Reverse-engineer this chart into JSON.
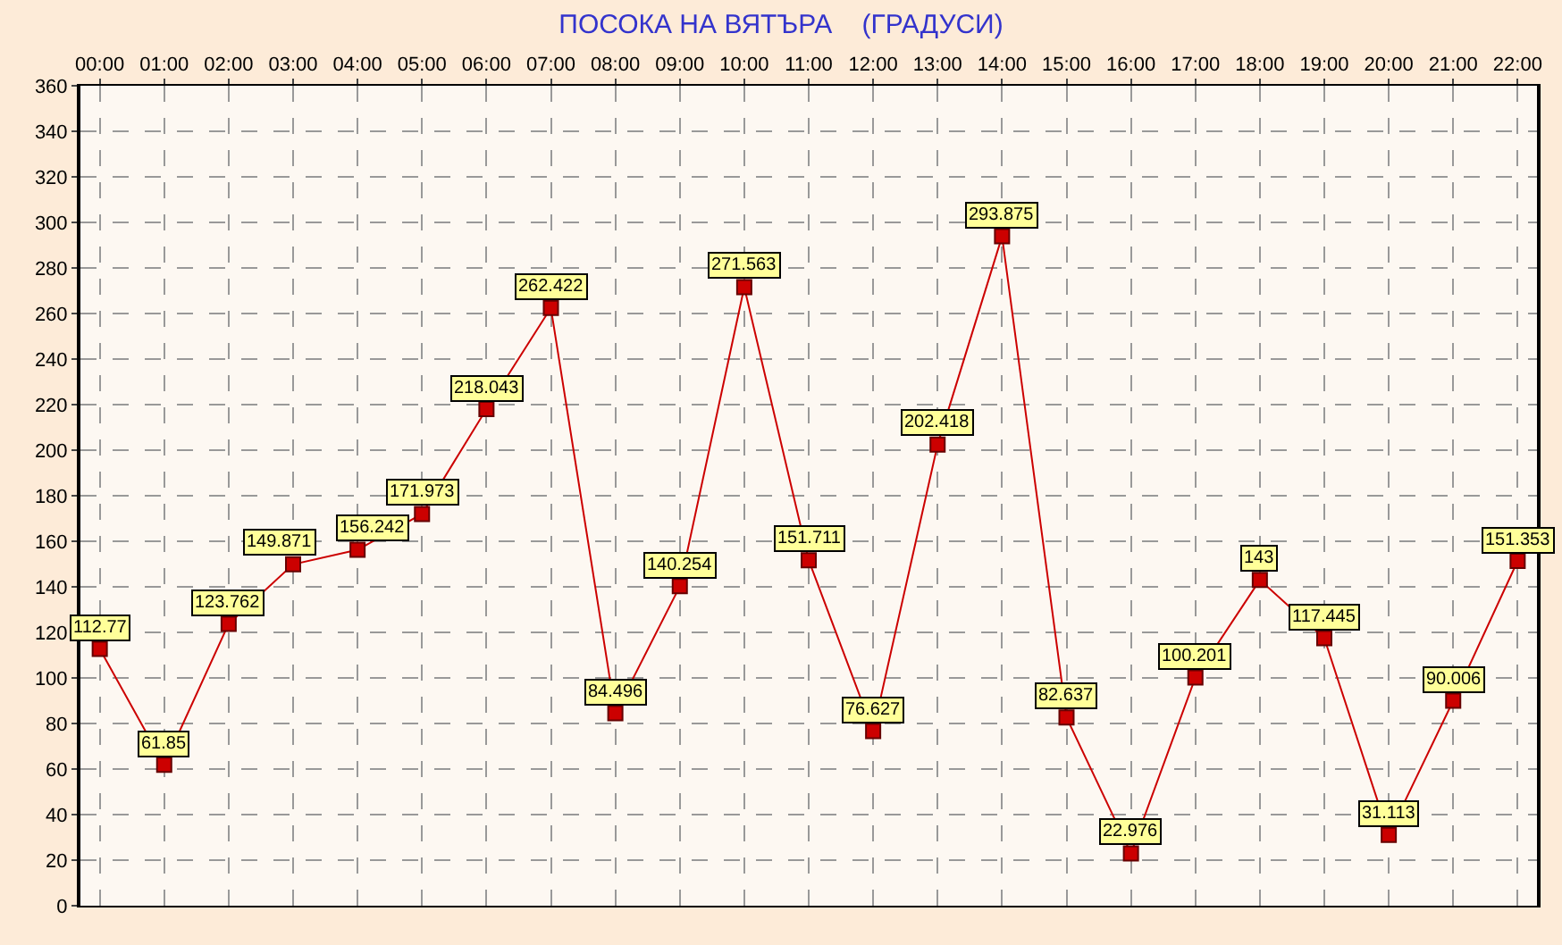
{
  "chart_data": {
    "type": "line",
    "title": "ПОСОКА НА ВЯТЪРА    (ГРАДУСИ)",
    "categories": [
      "00:00",
      "01:00",
      "02:00",
      "03:00",
      "04:00",
      "05:00",
      "06:00",
      "07:00",
      "08:00",
      "09:00",
      "10:00",
      "11:00",
      "12:00",
      "13:00",
      "14:00",
      "15:00",
      "16:00",
      "17:00",
      "18:00",
      "19:00",
      "20:00",
      "21:00",
      "22:00"
    ],
    "series": [
      {
        "color": "#cc0000",
        "values": [
          112.77,
          61.85,
          123.762,
          149.871,
          156.242,
          171.973,
          218.043,
          262.422,
          84.496,
          140.254,
          271.563,
          151.711,
          76.627,
          202.418,
          293.875,
          82.637,
          22.976,
          100.201,
          143,
          117.445,
          31.113,
          90.006,
          151.353
        ]
      }
    ],
    "ylim": [
      0,
      360
    ],
    "yticks": [
      0,
      20,
      40,
      60,
      80,
      100,
      120,
      140,
      160,
      180,
      200,
      220,
      240,
      260,
      280,
      300,
      320,
      340,
      360
    ],
    "grid": true,
    "marker": "square",
    "line_style": "solid",
    "data_labels": true
  }
}
